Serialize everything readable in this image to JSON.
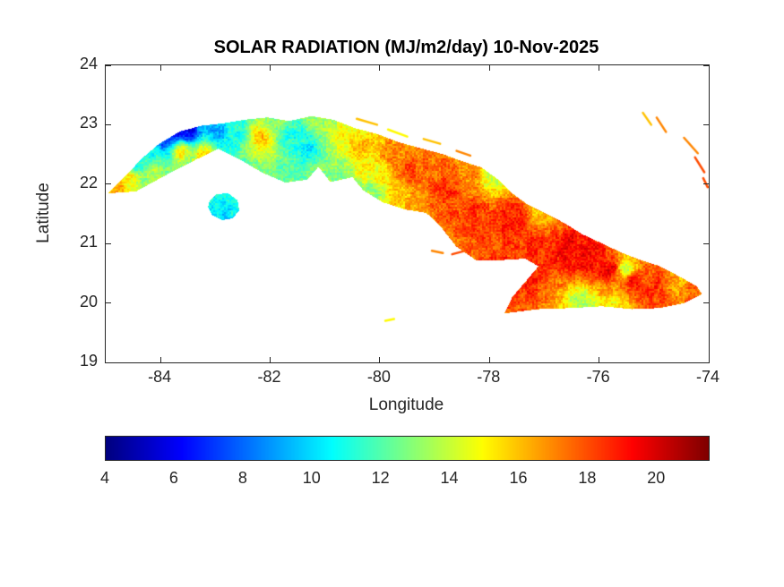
{
  "chart_data": {
    "type": "heatmap",
    "title": "SOLAR RADIATION (MJ/m2/day) 10-Nov-2025",
    "xlabel": "Longitude",
    "ylabel": "Latitude",
    "xlim": [
      -85,
      -74
    ],
    "ylim": [
      19,
      24
    ],
    "xticks": [
      -84,
      -82,
      -80,
      -78,
      -76,
      -74
    ],
    "yticks": [
      19,
      20,
      21,
      22,
      23,
      24
    ],
    "grid": false,
    "colormap": "jet",
    "colorbar": {
      "orientation": "horizontal",
      "position": "south",
      "range": [
        4,
        21.5
      ],
      "ticks": [
        4,
        6,
        8,
        10,
        12,
        14,
        16,
        18,
        20
      ]
    },
    "units": "MJ/m2/day",
    "outlines": {
      "cuba": [
        [
          -84.95,
          21.85
        ],
        [
          -84.65,
          22.12
        ],
        [
          -84.35,
          22.42
        ],
        [
          -84.05,
          22.66
        ],
        [
          -83.65,
          22.88
        ],
        [
          -83.25,
          22.98
        ],
        [
          -82.85,
          23.02
        ],
        [
          -82.45,
          23.08
        ],
        [
          -82.05,
          23.12
        ],
        [
          -81.65,
          23.06
        ],
        [
          -81.25,
          23.14
        ],
        [
          -80.85,
          23.08
        ],
        [
          -80.45,
          22.94
        ],
        [
          -80.05,
          22.84
        ],
        [
          -79.65,
          22.7
        ],
        [
          -79.25,
          22.6
        ],
        [
          -78.85,
          22.5
        ],
        [
          -78.5,
          22.38
        ],
        [
          -78.15,
          22.28
        ],
        [
          -77.85,
          22.08
        ],
        [
          -77.6,
          21.85
        ],
        [
          -77.3,
          21.65
        ],
        [
          -77.0,
          21.52
        ],
        [
          -76.65,
          21.35
        ],
        [
          -76.3,
          21.15
        ],
        [
          -75.95,
          21.0
        ],
        [
          -75.6,
          20.85
        ],
        [
          -75.25,
          20.72
        ],
        [
          -74.9,
          20.62
        ],
        [
          -74.55,
          20.45
        ],
        [
          -74.22,
          20.28
        ],
        [
          -74.13,
          20.15
        ],
        [
          -74.45,
          20.0
        ],
        [
          -74.9,
          19.92
        ],
        [
          -75.4,
          19.9
        ],
        [
          -75.95,
          19.95
        ],
        [
          -76.5,
          19.92
        ],
        [
          -77.1,
          19.9
        ],
        [
          -77.72,
          19.83
        ],
        [
          -77.58,
          20.1
        ],
        [
          -77.3,
          20.4
        ],
        [
          -77.1,
          20.62
        ],
        [
          -77.35,
          20.75
        ],
        [
          -77.85,
          20.72
        ],
        [
          -78.25,
          20.73
        ],
        [
          -78.6,
          20.95
        ],
        [
          -78.9,
          21.3
        ],
        [
          -79.15,
          21.52
        ],
        [
          -79.55,
          21.58
        ],
        [
          -79.95,
          21.7
        ],
        [
          -80.3,
          21.9
        ],
        [
          -80.5,
          22.12
        ],
        [
          -80.9,
          22.04
        ],
        [
          -81.12,
          22.3
        ],
        [
          -81.32,
          22.08
        ],
        [
          -81.72,
          22.03
        ],
        [
          -82.15,
          22.2
        ],
        [
          -82.55,
          22.42
        ],
        [
          -82.95,
          22.6
        ],
        [
          -83.35,
          22.42
        ],
        [
          -83.85,
          22.18
        ],
        [
          -84.45,
          21.88
        ]
      ],
      "isla_de_la_juventud": [
        [
          -83.1,
          21.72
        ],
        [
          -82.97,
          21.83
        ],
        [
          -82.76,
          21.84
        ],
        [
          -82.6,
          21.73
        ],
        [
          -82.57,
          21.56
        ],
        [
          -82.68,
          21.43
        ],
        [
          -82.88,
          21.4
        ],
        [
          -83.06,
          21.48
        ],
        [
          -83.13,
          21.62
        ]
      ]
    },
    "cays": [
      [
        -80.42,
        23.1,
        -80.05,
        23.0,
        16
      ],
      [
        -79.85,
        22.92,
        -79.5,
        22.8,
        15
      ],
      [
        -79.2,
        22.76,
        -78.9,
        22.68,
        16
      ],
      [
        -78.6,
        22.56,
        -78.35,
        22.48,
        17
      ],
      [
        -79.05,
        20.88,
        -78.85,
        20.84,
        17
      ],
      [
        -78.68,
        20.82,
        -78.48,
        20.87,
        18
      ],
      [
        -78.28,
        20.93,
        -78.12,
        20.99,
        18
      ],
      [
        -79.9,
        19.7,
        -79.74,
        19.73,
        15
      ],
      [
        -75.2,
        23.2,
        -75.05,
        23.0,
        16
      ],
      [
        -74.95,
        23.12,
        -74.78,
        22.88,
        17
      ],
      [
        -74.45,
        22.78,
        -74.2,
        22.52,
        17
      ],
      [
        -74.25,
        22.45,
        -74.08,
        22.2,
        18
      ],
      [
        -74.1,
        22.1,
        -74.02,
        21.95,
        18
      ]
    ],
    "field_samples": [
      [
        -84.8,
        21.95,
        16.5
      ],
      [
        -84.55,
        22.1,
        15.0
      ],
      [
        -84.45,
        22.32,
        10.5
      ],
      [
        -84.15,
        22.5,
        11.0
      ],
      [
        -84.1,
        22.2,
        14.0
      ],
      [
        -83.75,
        22.95,
        4.5
      ],
      [
        -83.5,
        22.88,
        6.0
      ],
      [
        -83.95,
        22.75,
        7.5
      ],
      [
        -83.6,
        22.55,
        15.0
      ],
      [
        -83.2,
        22.52,
        15.5
      ],
      [
        -83.0,
        22.85,
        9.0
      ],
      [
        -82.6,
        22.95,
        11.0
      ],
      [
        -82.15,
        22.8,
        16.0
      ],
      [
        -81.9,
        23.02,
        13.0
      ],
      [
        -81.6,
        22.8,
        11.0
      ],
      [
        -81.3,
        22.62,
        10.5
      ],
      [
        -81.0,
        23.0,
        13.5
      ],
      [
        -80.7,
        22.82,
        15.0
      ],
      [
        -80.7,
        22.1,
        12.5
      ],
      [
        -80.3,
        22.6,
        16.0
      ],
      [
        -80.1,
        22.25,
        15.0
      ],
      [
        -80.15,
        21.85,
        13.0
      ],
      [
        -79.8,
        22.5,
        17.0
      ],
      [
        -79.45,
        22.2,
        18.0
      ],
      [
        -79.6,
        21.75,
        16.0
      ],
      [
        -79.0,
        22.4,
        17.5
      ],
      [
        -78.8,
        21.9,
        18.5
      ],
      [
        -78.35,
        22.2,
        17.0
      ],
      [
        -78.3,
        21.5,
        18.5
      ],
      [
        -77.95,
        22.15,
        14.0
      ],
      [
        -77.6,
        21.4,
        19.0
      ],
      [
        -77.2,
        21.0,
        18.5
      ],
      [
        -77.05,
        21.5,
        16.0
      ],
      [
        -77.4,
        20.55,
        19.0
      ],
      [
        -76.6,
        20.9,
        19.5
      ],
      [
        -76.2,
        20.75,
        19.5
      ],
      [
        -75.8,
        20.55,
        19.5
      ],
      [
        -75.4,
        20.4,
        19.0
      ],
      [
        -75.0,
        20.25,
        18.5
      ],
      [
        -74.55,
        20.35,
        16.5
      ],
      [
        -74.25,
        20.18,
        17.5
      ],
      [
        -76.3,
        20.0,
        13.5
      ],
      [
        -75.7,
        20.0,
        15.0
      ],
      [
        -75.5,
        20.55,
        14.0
      ],
      [
        -82.85,
        21.6,
        10.0
      ],
      [
        -82.7,
        21.78,
        11.5
      ]
    ]
  },
  "colors": {
    "axis": "#262626",
    "title": "#000000",
    "background": "#ffffff"
  }
}
